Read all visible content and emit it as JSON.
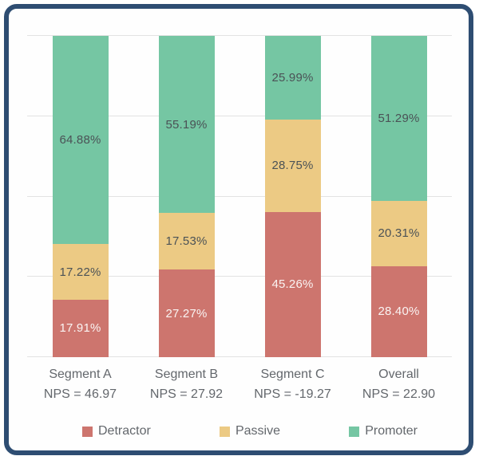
{
  "colors": {
    "card_border": "#2e4d72",
    "card_background": "#fefefe",
    "gridline": "#e2e2e2",
    "axis_text": "#63676c",
    "label_dark": "#4b5256",
    "label_light": "#faf4f3",
    "detractor": "#cd756e",
    "passive": "#ecca84",
    "promoter": "#75c6a3"
  },
  "chart_data": {
    "type": "bar",
    "stacked": true,
    "orientation": "vertical",
    "unit": "%",
    "ylim": [
      0,
      100
    ],
    "grid": "horizontal",
    "gridlines_pct": [
      0,
      25,
      50,
      75,
      100
    ],
    "legend_position": "bottom",
    "categories": [
      {
        "label": "Segment A",
        "sublabel": "NPS = 46.97"
      },
      {
        "label": "Segment B",
        "sublabel": "NPS = 27.92"
      },
      {
        "label": "Segment C",
        "sublabel": "NPS = -19.27"
      },
      {
        "label": "Overall",
        "sublabel": "NPS = 22.90"
      }
    ],
    "series": [
      {
        "name": "Detractor",
        "color": "#cd756e",
        "label_color": "#faf4f3",
        "values": [
          17.91,
          27.27,
          45.26,
          28.4
        ],
        "labels": [
          "17.91%",
          "27.27%",
          "45.26%",
          "28.40%"
        ]
      },
      {
        "name": "Passive",
        "color": "#ecca84",
        "label_color": "#4b5256",
        "values": [
          17.22,
          17.53,
          28.75,
          20.31
        ],
        "labels": [
          "17.22%",
          "17.53%",
          "28.75%",
          "20.31%"
        ]
      },
      {
        "name": "Promoter",
        "color": "#75c6a3",
        "label_color": "#4b5256",
        "values": [
          64.88,
          55.19,
          25.99,
          51.29
        ],
        "labels": [
          "64.88%",
          "55.19%",
          "25.99%",
          "51.29%"
        ]
      }
    ],
    "legend": [
      "Detractor",
      "Passive",
      "Promoter"
    ]
  }
}
